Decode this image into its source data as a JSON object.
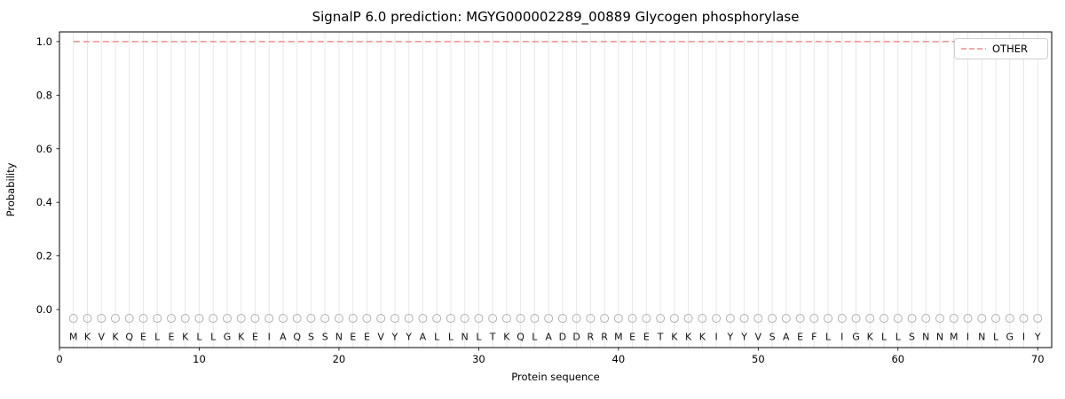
{
  "chart_data": {
    "type": "line",
    "title": "SignalP 6.0 prediction: MGYG000002289_00889 Glycogen phosphorylase",
    "xlabel": "Protein sequence",
    "ylabel": "Probability",
    "xlim": [
      0,
      71
    ],
    "ylim": [
      -0.142,
      1.036
    ],
    "xticks": [
      0,
      10,
      20,
      30,
      40,
      50,
      60,
      70
    ],
    "yticks": [
      0.0,
      0.2,
      0.4,
      0.6,
      0.8,
      1.0
    ],
    "grid": {
      "vertical_per_residue": true,
      "color": "#e8e8e8"
    },
    "frame_color": "#000000",
    "sequence": "MKVKQELEKLLGKEIAQSSNEEVYYALLNLTKQLADDRRMEETKKKIYYVSAEFLIGKLLSNNMINLGIY",
    "sequence_length": 70,
    "series": [
      {
        "name": "OTHER",
        "color": "#f28b8b",
        "line_style": "dashed",
        "x_range": [
          1,
          70
        ],
        "value_constant": 1.0
      }
    ],
    "markers": {
      "shape": "open-circle",
      "y": -0.033,
      "color": "#b3b3b3",
      "per_residue": true
    },
    "letter_row_y": -0.1,
    "legend_position": "upper right"
  }
}
